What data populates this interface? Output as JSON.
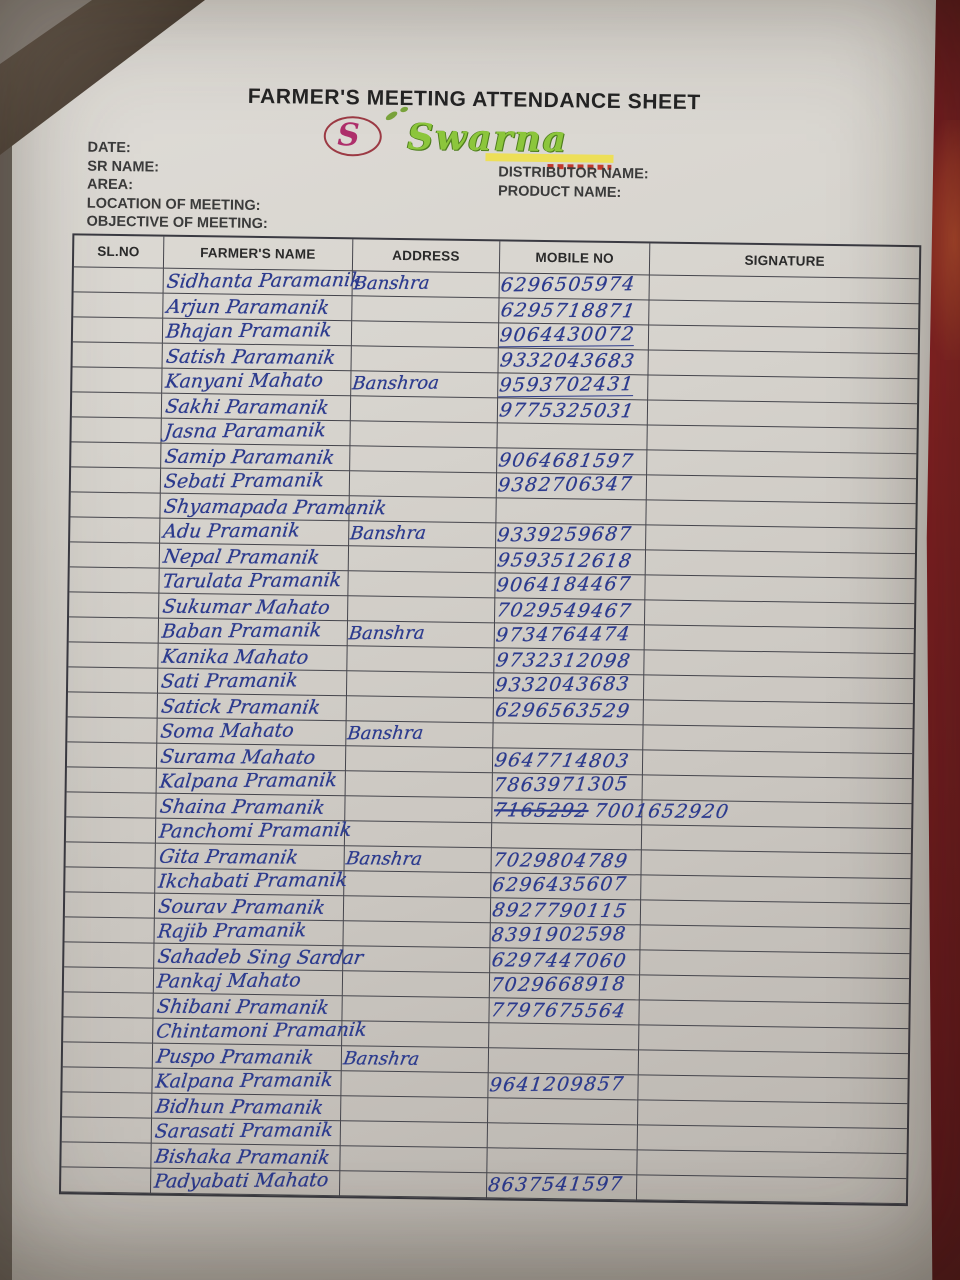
{
  "title": "FARMER'S MEETING ATTENDANCE SHEET",
  "logo": {
    "brand": "Swarna",
    "monogram": "S"
  },
  "colors": {
    "ink_blue": "#2c3b8e",
    "paper": "#d8d5cf",
    "fabric_red": "#8f2024",
    "brand_green": "#8cc63c",
    "brand_magenta": "#ae2f6b",
    "highlight_yellow": "#eee04a"
  },
  "form": {
    "left": [
      "DATE:",
      "SR NAME:",
      "AREA:",
      "LOCATION OF MEETING:",
      "OBJECTIVE OF MEETING:"
    ],
    "right": [
      "DISTRIBUTOR NAME:",
      "PRODUCT NAME:"
    ]
  },
  "table": {
    "columns": [
      "SL.NO",
      "FARMER'S NAME",
      "ADDRESS",
      "MOBILE NO",
      "SIGNATURE"
    ],
    "rows": [
      {
        "name": "Sidhanta Paramanik",
        "address": "Banshra",
        "mobile": "6296505974"
      },
      {
        "name": "Arjun Paramanik",
        "address": "",
        "mobile": "6295718871"
      },
      {
        "name": "Bhajan Pramanik",
        "address": "",
        "mobile": "9064430072",
        "underline": true
      },
      {
        "name": "Satish Paramanik",
        "address": "",
        "mobile": "9332043683"
      },
      {
        "name": "Kanyani Mahato",
        "address": "Banshroa",
        "mobile": "9593702431",
        "underline": true
      },
      {
        "name": "Sakhi Paramanik",
        "address": "",
        "mobile": "9775325031"
      },
      {
        "name": "Jasna Paramanik",
        "address": "",
        "mobile": ""
      },
      {
        "name": "Samip Paramanik",
        "address": "",
        "mobile": "9064681597"
      },
      {
        "name": "Sebati Pramanik",
        "address": "",
        "mobile": "9382706347"
      },
      {
        "name": "Shyamapada Pramanik",
        "address": "",
        "mobile": ""
      },
      {
        "name": "Adu Pramanik",
        "address": "Banshra",
        "mobile": "9339259687"
      },
      {
        "name": "Nepal Pramanik",
        "address": "",
        "mobile": "9593512618"
      },
      {
        "name": "Tarulata Pramanik",
        "address": "",
        "mobile": "9064184467"
      },
      {
        "name": "Sukumar Mahato",
        "address": "",
        "mobile": "7029549467"
      },
      {
        "name": "Baban Pramanik",
        "address": "Banshra",
        "mobile": "9734764474"
      },
      {
        "name": "Kanika Mahato",
        "address": "",
        "mobile": "9732312098"
      },
      {
        "name": "Sati Pramanik",
        "address": "",
        "mobile": "9332043683"
      },
      {
        "name": "Satick Pramanik",
        "address": "",
        "mobile": "6296563529"
      },
      {
        "name": "Soma Mahato",
        "address": "Banshra",
        "mobile": ""
      },
      {
        "name": "Surama Mahato",
        "address": "",
        "mobile": "9647714803"
      },
      {
        "name": "Kalpana Pramanik",
        "address": "",
        "mobile": "7863971305"
      },
      {
        "name": "Shaina Pramanik",
        "address": "",
        "mobile": "7001652920",
        "mobile_struck": "7165292"
      },
      {
        "name": "Panchomi Pramanik",
        "address": "",
        "mobile": ""
      },
      {
        "name": "Gita Pramanik",
        "address": "Banshra",
        "mobile": "7029804789"
      },
      {
        "name": "Ikchabati Pramanik",
        "address": "",
        "mobile": "6296435607"
      },
      {
        "name": "Sourav Pramanik",
        "address": "",
        "mobile": "8927790115"
      },
      {
        "name": "Rajib Pramanik",
        "address": "",
        "mobile": "8391902598"
      },
      {
        "name": "Sahadeb Sing Sardar",
        "address": "",
        "mobile": "6297447060"
      },
      {
        "name": "Pankaj Mahato",
        "address": "",
        "mobile": "7029668918"
      },
      {
        "name": "Shibani Pramanik",
        "address": "",
        "mobile": "7797675564"
      },
      {
        "name": "Chintamoni Pramanik",
        "address": "",
        "mobile": ""
      },
      {
        "name": "Puspo Pramanik",
        "address": "Banshra",
        "mobile": ""
      },
      {
        "name": "Kalpana Pramanik",
        "address": "",
        "mobile": "9641209857"
      },
      {
        "name": "Bidhun Pramanik",
        "address": "",
        "mobile": ""
      },
      {
        "name": "Sarasati Pramanik",
        "address": "",
        "mobile": ""
      },
      {
        "name": "Bishaka Pramanik",
        "address": "",
        "mobile": ""
      },
      {
        "name": "Padyabati Mahato",
        "address": "",
        "mobile": "8637541597"
      }
    ]
  }
}
